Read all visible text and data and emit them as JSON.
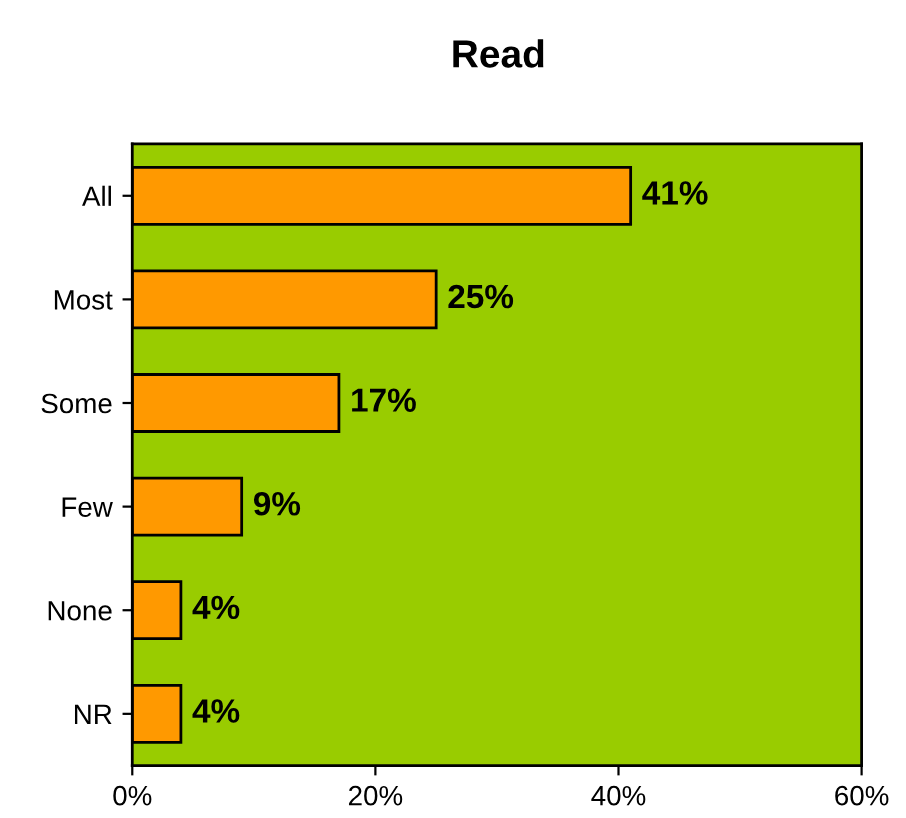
{
  "chart_data": {
    "type": "bar",
    "orientation": "horizontal",
    "title": "Read",
    "categories": [
      "All",
      "Most",
      "Some",
      "Few",
      "None",
      "NR"
    ],
    "values": [
      41,
      25,
      17,
      9,
      4,
      4
    ],
    "value_labels": [
      "41%",
      "25%",
      "17%",
      "9%",
      "4%",
      "4%"
    ],
    "color": "#ff9900",
    "xlim": [
      0,
      60
    ],
    "xticks": [
      {
        "value": 0,
        "label": "0%"
      },
      {
        "value": 20,
        "label": "20%"
      },
      {
        "value": 40,
        "label": "40%"
      },
      {
        "value": 60,
        "label": "60%"
      }
    ],
    "grid": false,
    "legend": false
  }
}
